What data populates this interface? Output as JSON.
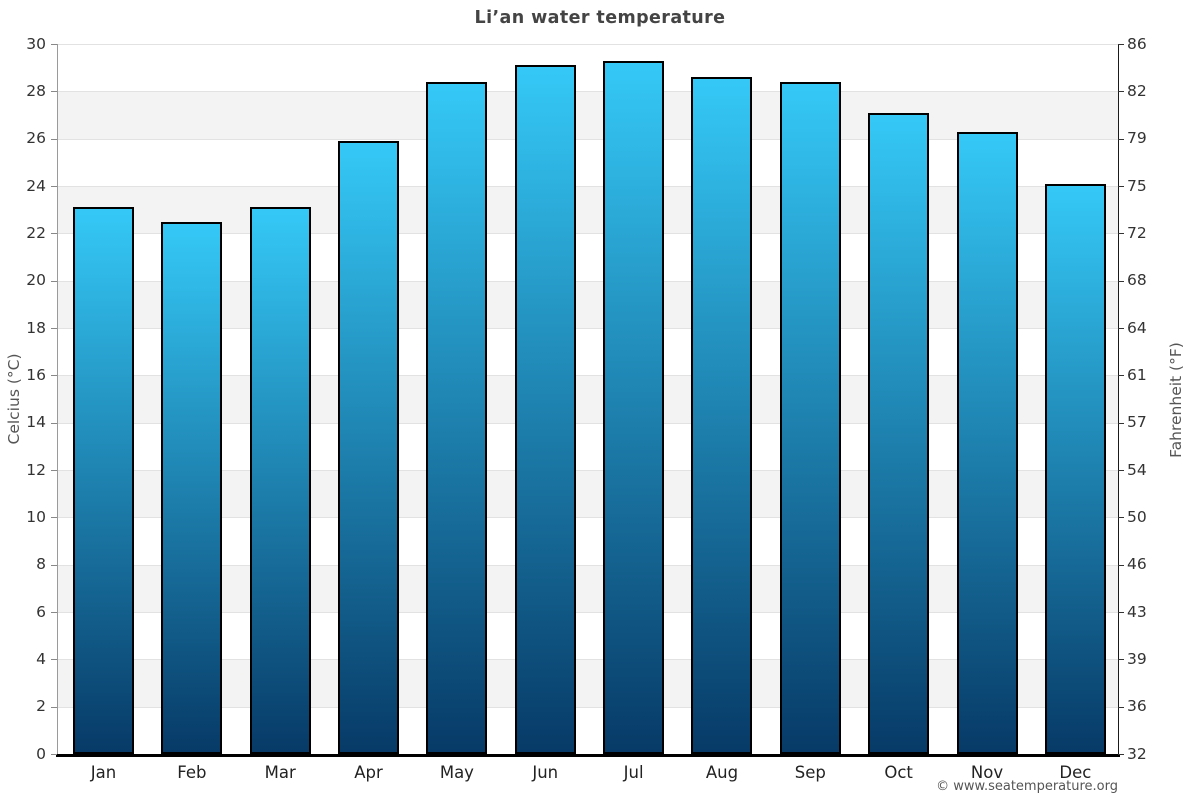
{
  "title": "Li’an water temperature",
  "footer": {
    "copyright": "© www.seatemperature.org"
  },
  "chart_data": {
    "type": "bar",
    "title": "Li’an water temperature",
    "categories": [
      "Jan",
      "Feb",
      "Mar",
      "Apr",
      "May",
      "Jun",
      "Jul",
      "Aug",
      "Sep",
      "Oct",
      "Nov",
      "Dec"
    ],
    "values": [
      23.1,
      22.5,
      23.1,
      25.9,
      28.4,
      29.1,
      29.3,
      28.6,
      28.4,
      27.1,
      26.3,
      24.1
    ],
    "xlabel": "",
    "ylabel_left": "Celcius (°C)",
    "ylabel_right": "Fahrenheit (°F)",
    "ylim": [
      0,
      30
    ],
    "yticks_celsius": [
      30,
      28,
      26,
      24,
      22,
      20,
      18,
      16,
      14,
      12,
      10,
      8,
      6,
      4,
      2,
      0
    ],
    "yticks_fahrenheit": [
      86,
      82,
      79,
      75,
      72,
      68,
      64,
      61,
      57,
      54,
      50,
      46,
      43,
      39,
      36,
      32
    ],
    "legend": "none",
    "grid": "alternating horizontal bands every 2°C",
    "colors": {
      "bar_gradient_top": "#35C9F7",
      "bar_gradient_bottom": "#073A67",
      "bar_border": "#000000",
      "band_light": "#ffffff",
      "band_shaded": "#f3f3f3",
      "gridline": "#e2e2e2",
      "title_text": "#444444",
      "axis_text": "#333333"
    }
  }
}
